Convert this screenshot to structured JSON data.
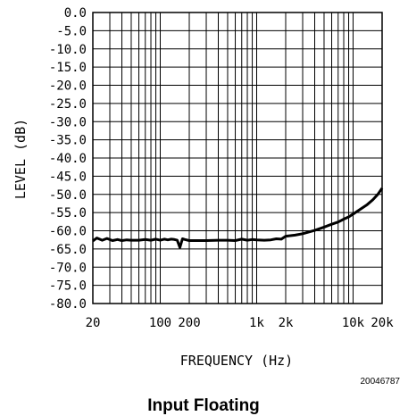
{
  "chart_data": {
    "type": "line",
    "title": "",
    "xlabel": "FREQUENCY (Hz)",
    "ylabel": "LEVEL (dB)",
    "x_scale": "log",
    "xlim": [
      20,
      20000
    ],
    "ylim": [
      -80,
      0
    ],
    "y_ticks": [
      "0.0",
      "-5.0",
      "-10.0",
      "-15.0",
      "-20.0",
      "-25.0",
      "-30.0",
      "-35.0",
      "-40.0",
      "-45.0",
      "-50.0",
      "-55.0",
      "-60.0",
      "-65.0",
      "-70.0",
      "-75.0",
      "-80.0"
    ],
    "x_tick_labels": [
      {
        "value": 20,
        "label": "20"
      },
      {
        "value": 100,
        "label": "100"
      },
      {
        "value": 200,
        "label": "200"
      },
      {
        "value": 1000,
        "label": "1k"
      },
      {
        "value": 2000,
        "label": "2k"
      },
      {
        "value": 10000,
        "label": "10k"
      },
      {
        "value": 20000,
        "label": "20k"
      }
    ],
    "grid": true,
    "series": [
      {
        "x": [
          20,
          22,
          25,
          28,
          32,
          36,
          40,
          45,
          50,
          60,
          70,
          80,
          90,
          100,
          110,
          120,
          130,
          140,
          150,
          160,
          170,
          180,
          200,
          250,
          300,
          400,
          500,
          600,
          700,
          800,
          900,
          1000,
          1200,
          1400,
          1600,
          1800,
          2000,
          2500,
          3000,
          4000,
          5000,
          6000,
          7000,
          8000,
          9000,
          10000,
          12000,
          14000,
          16000,
          18000,
          20000
        ],
        "y": [
          -62.8,
          -62.0,
          -62.6,
          -62.1,
          -62.7,
          -62.4,
          -62.7,
          -62.5,
          -62.6,
          -62.6,
          -62.4,
          -62.6,
          -62.3,
          -62.6,
          -62.3,
          -62.5,
          -62.3,
          -62.4,
          -62.6,
          -64.6,
          -62.2,
          -62.4,
          -62.7,
          -62.7,
          -62.7,
          -62.6,
          -62.6,
          -62.7,
          -62.3,
          -62.6,
          -62.4,
          -62.5,
          -62.6,
          -62.5,
          -62.2,
          -62.3,
          -61.5,
          -61.2,
          -60.8,
          -59.9,
          -59.0,
          -58.2,
          -57.6,
          -56.8,
          -56.2,
          -55.4,
          -54.0,
          -52.8,
          -51.5,
          -50.0,
          -48.3
        ]
      }
    ]
  },
  "figure_id": "20046787",
  "caption": "Input Floating"
}
